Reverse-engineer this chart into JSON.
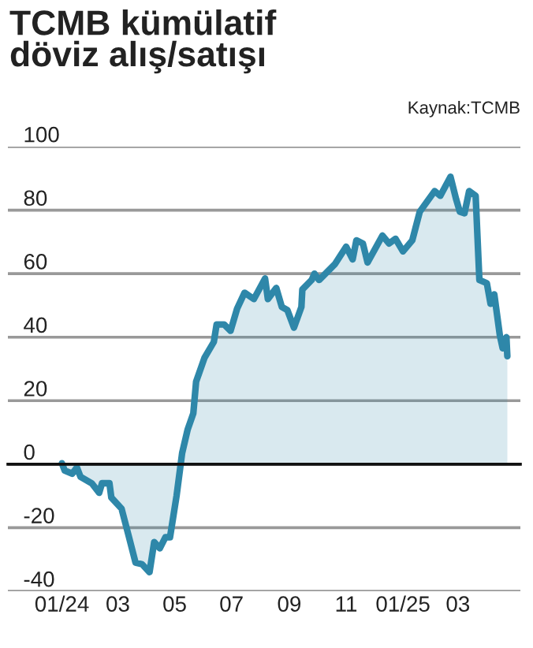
{
  "chart_data": {
    "type": "area",
    "title": "TCMB kümülatif\ndöviz alış/satışı",
    "annotations": [
      "Kaynak:TCMB"
    ],
    "x": [
      "2024-01-01",
      "2024-01-04",
      "2024-01-12",
      "2024-01-17",
      "2024-01-21",
      "2024-02-02",
      "2024-02-10",
      "2024-02-13",
      "2024-02-21",
      "2024-02-23",
      "2024-03-05",
      "2024-03-13",
      "2024-03-20",
      "2024-03-27",
      "2024-04-04",
      "2024-04-09",
      "2024-04-15",
      "2024-04-21",
      "2024-04-26",
      "2024-05-03",
      "2024-05-09",
      "2024-05-15",
      "2024-05-21",
      "2024-05-24",
      "2024-06-02",
      "2024-06-12",
      "2024-06-15",
      "2024-06-23",
      "2024-06-30",
      "2024-07-07",
      "2024-07-15",
      "2024-07-25",
      "2024-08-06",
      "2024-08-09",
      "2024-08-18",
      "2024-08-24",
      "2024-08-30",
      "2024-09-06",
      "2024-09-14",
      "2024-09-15",
      "2024-09-25",
      "2024-09-28",
      "2024-10-03",
      "2024-10-20",
      "2024-11-01",
      "2024-11-08",
      "2024-11-12",
      "2024-11-19",
      "2024-11-24",
      "2024-12-10",
      "2024-12-17",
      "2024-12-24",
      "2025-01-01",
      "2025-01-11",
      "2025-01-19",
      "2025-02-04",
      "2025-02-10",
      "2025-02-21",
      "2025-02-27",
      "2025-03-03",
      "2025-03-08",
      "2025-03-13",
      "2025-03-20",
      "2025-03-24",
      "2025-04-01",
      "2025-04-05",
      "2025-04-09",
      "2025-04-15",
      "2025-04-18",
      "2025-04-22",
      "2025-04-23"
    ],
    "series": [
      {
        "color": "#2e87a9",
        "values": [
          0.3,
          -2,
          -3,
          -1,
          -4,
          -6,
          -9,
          -6,
          -6,
          -10.5,
          -14,
          -23,
          -31,
          -31.5,
          -34,
          -24.5,
          -26.5,
          -23,
          -23,
          -10,
          3.5,
          11,
          16,
          26,
          33.5,
          38.5,
          44,
          44,
          42,
          49,
          54,
          52,
          58.5,
          52,
          55.5,
          49.5,
          48.5,
          43,
          49.5,
          55,
          58,
          60,
          58,
          63,
          68.5,
          64.5,
          70.5,
          69.5,
          63.5,
          72,
          69.5,
          71,
          67,
          70.5,
          79.5,
          86,
          84.5,
          90.5,
          83.5,
          79.5,
          79,
          86,
          84.5,
          58,
          57,
          50.5,
          53.5,
          40.5,
          36.5,
          40,
          34
        ]
      }
    ],
    "xlim": [
      "2023-11-04",
      "2025-05-07"
    ],
    "xticks": [
      {
        "value": "2024-01-01",
        "label": "01/24"
      },
      {
        "value": "2024-03-01",
        "label": "03"
      },
      {
        "value": "2024-05-01",
        "label": "05"
      },
      {
        "value": "2024-07-01",
        "label": "07"
      },
      {
        "value": "2024-09-01",
        "label": "09"
      },
      {
        "value": "2024-11-01",
        "label": "11"
      },
      {
        "value": "2025-01-01",
        "label": "01/25"
      },
      {
        "value": "2025-03-01",
        "label": "03"
      }
    ],
    "ylim": [
      -40,
      100
    ],
    "yticks": [
      -40,
      -20,
      0,
      20,
      40,
      60,
      80,
      100
    ],
    "grid": "y"
  }
}
